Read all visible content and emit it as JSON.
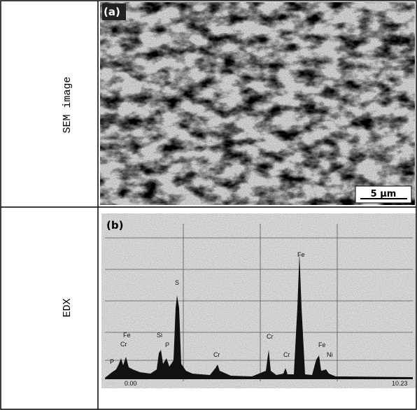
{
  "table": {
    "rows": [
      {
        "label": "SEM image",
        "panel": "(a)",
        "scale_bar": "5 μm"
      },
      {
        "label": "EDX",
        "panel": "(b)",
        "peaks": [
          "Fe",
          "Cr",
          "P",
          "Si",
          "P",
          "S",
          "Cr",
          "Cr",
          "Cr",
          "Fe",
          "Fe",
          "Ni"
        ],
        "axis_start": "0.00",
        "axis_end": "10.23"
      }
    ]
  }
}
